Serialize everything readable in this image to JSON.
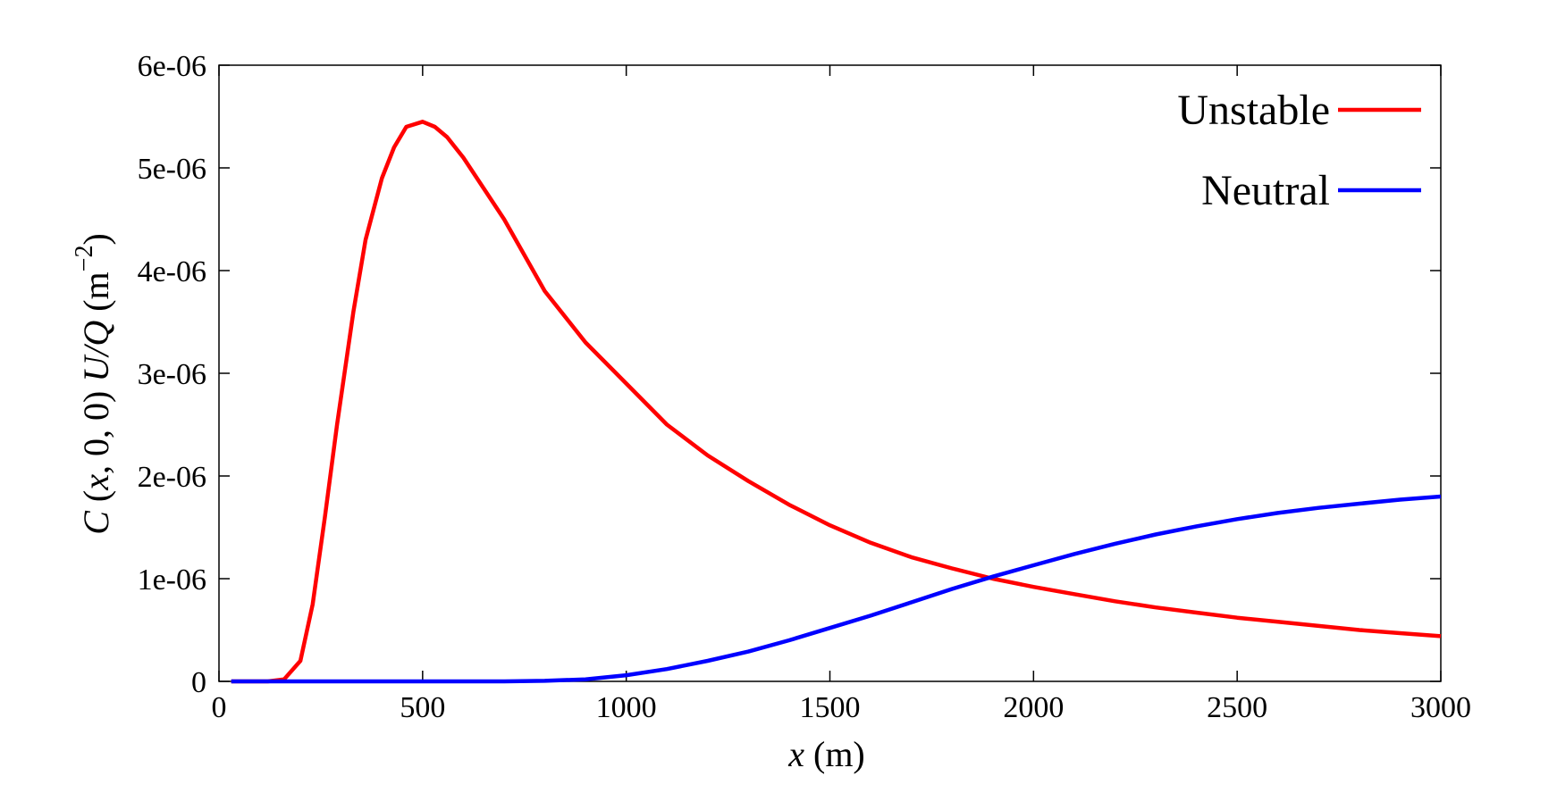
{
  "chart_data": {
    "type": "line",
    "title": "",
    "xlabel": "x (m)",
    "ylabel": "C (x, 0, 0) U/Q (m⁻²)",
    "xlim": [
      0,
      3000
    ],
    "ylim": [
      0,
      6e-06
    ],
    "x_ticks": [
      0,
      500,
      1000,
      1500,
      2000,
      2500,
      3000
    ],
    "x_tick_labels": [
      "0",
      "500",
      "1000",
      "1500",
      "2000",
      "2500",
      "3000"
    ],
    "y_ticks": [
      0,
      1e-06,
      2e-06,
      3e-06,
      4e-06,
      5e-06,
      6e-06
    ],
    "y_tick_labels": [
      "0",
      "1e-06",
      "2e-06",
      "3e-06",
      "4e-06",
      "5e-06",
      "6e-06"
    ],
    "grid": false,
    "legend_position": "top-right",
    "series": [
      {
        "name": "Unstable",
        "color": "#ff0000",
        "points": [
          [
            30,
            0
          ],
          [
            120,
            0
          ],
          [
            160,
            2e-08
          ],
          [
            200,
            2e-07
          ],
          [
            230,
            7.5e-07
          ],
          [
            260,
            1.6e-06
          ],
          [
            290,
            2.5e-06
          ],
          [
            330,
            3.6e-06
          ],
          [
            360,
            4.3e-06
          ],
          [
            400,
            4.9e-06
          ],
          [
            430,
            5.2e-06
          ],
          [
            460,
            5.4e-06
          ],
          [
            500,
            5.45e-06
          ],
          [
            530,
            5.4e-06
          ],
          [
            560,
            5.3e-06
          ],
          [
            600,
            5.1e-06
          ],
          [
            650,
            4.8e-06
          ],
          [
            700,
            4.5e-06
          ],
          [
            800,
            3.8e-06
          ],
          [
            900,
            3.3e-06
          ],
          [
            1000,
            2.9e-06
          ],
          [
            1100,
            2.5e-06
          ],
          [
            1200,
            2.2e-06
          ],
          [
            1300,
            1.95e-06
          ],
          [
            1400,
            1.72e-06
          ],
          [
            1500,
            1.52e-06
          ],
          [
            1600,
            1.35e-06
          ],
          [
            1700,
            1.21e-06
          ],
          [
            1800,
            1.1e-06
          ],
          [
            1900,
            1e-06
          ],
          [
            2000,
            9.2e-07
          ],
          [
            2100,
            8.5e-07
          ],
          [
            2200,
            7.8e-07
          ],
          [
            2300,
            7.2e-07
          ],
          [
            2400,
            6.7e-07
          ],
          [
            2500,
            6.2e-07
          ],
          [
            2600,
            5.8e-07
          ],
          [
            2700,
            5.4e-07
          ],
          [
            2800,
            5e-07
          ],
          [
            2900,
            4.7e-07
          ],
          [
            3000,
            4.4e-07
          ]
        ]
      },
      {
        "name": "Neutral",
        "color": "#0000ff",
        "points": [
          [
            30,
            0
          ],
          [
            500,
            0
          ],
          [
            700,
            0
          ],
          [
            800,
            5e-09
          ],
          [
            900,
            2e-08
          ],
          [
            1000,
            6e-08
          ],
          [
            1100,
            1.2e-07
          ],
          [
            1200,
            2e-07
          ],
          [
            1300,
            2.9e-07
          ],
          [
            1400,
            4e-07
          ],
          [
            1500,
            5.2e-07
          ],
          [
            1600,
            6.4e-07
          ],
          [
            1700,
            7.7e-07
          ],
          [
            1800,
            9e-07
          ],
          [
            1900,
            1.02e-06
          ],
          [
            2000,
            1.13e-06
          ],
          [
            2100,
            1.24e-06
          ],
          [
            2200,
            1.34e-06
          ],
          [
            2300,
            1.43e-06
          ],
          [
            2400,
            1.51e-06
          ],
          [
            2500,
            1.58e-06
          ],
          [
            2600,
            1.64e-06
          ],
          [
            2700,
            1.69e-06
          ],
          [
            2800,
            1.73e-06
          ],
          [
            2900,
            1.77e-06
          ],
          [
            3000,
            1.8e-06
          ]
        ]
      }
    ]
  }
}
